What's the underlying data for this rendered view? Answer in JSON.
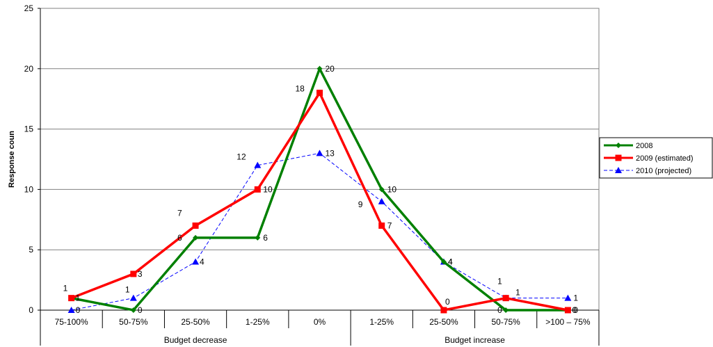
{
  "chart_data": {
    "type": "line",
    "title": "",
    "xlabel": "",
    "ylabel": "Response coun",
    "ylim": [
      0,
      25
    ],
    "yticks": [
      0,
      5,
      10,
      15,
      20,
      25
    ],
    "grid": true,
    "legend_position": "right",
    "categories": [
      "75-100%",
      "50-75%",
      "25-50%",
      "1-25%",
      "0%",
      "1-25%",
      "25-50%",
      "50-75%",
      ">100 – 75%"
    ],
    "category_groups": [
      {
        "label": "Budget decrease",
        "span": [
          0,
          4
        ]
      },
      {
        "label": "Budget increase",
        "span": [
          5,
          8
        ]
      }
    ],
    "series": [
      {
        "name": "2008",
        "values": [
          1,
          0,
          6,
          6,
          20,
          10,
          4,
          0,
          0
        ],
        "color": "#008000",
        "marker": "diamond",
        "dash": "solid"
      },
      {
        "name": "2009 (estimated)",
        "values": [
          1,
          3,
          7,
          10,
          18,
          7,
          0,
          1,
          0
        ],
        "color": "#ff0000",
        "marker": "square",
        "dash": "solid"
      },
      {
        "name": "2010 (projected)",
        "values": [
          0,
          1,
          4,
          12,
          13,
          9,
          4,
          1,
          1
        ],
        "color": "#0000ff",
        "marker": "triangle",
        "dash": "dashed"
      }
    ]
  }
}
